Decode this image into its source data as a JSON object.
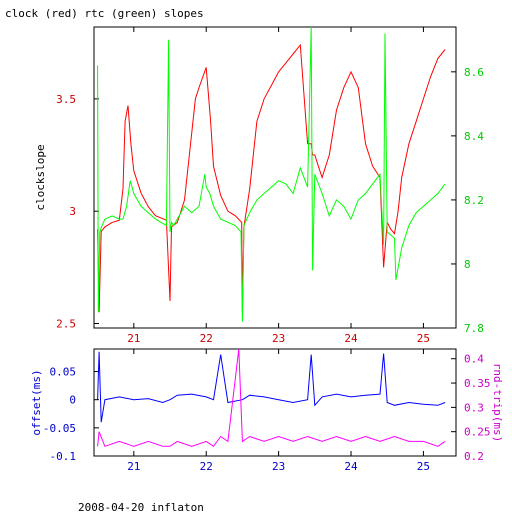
{
  "chart_data": [
    {
      "type": "line",
      "title": "clock (red) rtc (green) slopes",
      "xlabel": "",
      "ylabel_left": "clockslope",
      "ylabel_right": "",
      "xlim": [
        20.45,
        25.45
      ],
      "ylim_left": [
        2.48,
        3.82
      ],
      "ylim_right": [
        7.8,
        8.74
      ],
      "xticks": [
        21,
        22,
        23,
        24,
        25
      ],
      "yticks_left": [
        2.5,
        3,
        3.5
      ],
      "ytick_labels_left": [
        "2.5",
        "3",
        "3.5"
      ],
      "yticks_right": [
        7.8,
        8,
        8.2,
        8.4,
        8.6
      ],
      "ytick_labels_right": [
        "7.8",
        "8",
        "8.2",
        "8.4",
        "8.6"
      ],
      "colors": {
        "left_axis": "#cc0000",
        "right_axis": "#00cc00",
        "x_axis": "#cc0000",
        "frame": "#000000"
      },
      "series": [
        {
          "axis": "left",
          "color": "#ff0000",
          "x": [
            20.5,
            20.52,
            20.55,
            20.6,
            20.7,
            20.8,
            20.85,
            20.88,
            20.92,
            20.96,
            21.0,
            21.1,
            21.2,
            21.3,
            21.45,
            21.5,
            21.52,
            21.6,
            21.7,
            21.85,
            21.9,
            22.0,
            22.06,
            22.1,
            22.2,
            22.3,
            22.4,
            22.49,
            22.5,
            22.52,
            22.6,
            22.7,
            22.8,
            22.9,
            23.0,
            23.1,
            23.2,
            23.3,
            23.4,
            23.45,
            23.47,
            23.5,
            23.55,
            23.6,
            23.7,
            23.8,
            23.9,
            24.0,
            24.1,
            24.2,
            24.3,
            24.4,
            24.45,
            24.5,
            24.55,
            24.6,
            24.65,
            24.7,
            24.8,
            24.9,
            25.0,
            25.1,
            25.2,
            25.3
          ],
          "y": [
            2.92,
            2.55,
            2.91,
            2.93,
            2.95,
            2.96,
            3.1,
            3.4,
            3.47,
            3.3,
            3.18,
            3.08,
            3.02,
            2.98,
            2.96,
            2.6,
            2.93,
            2.95,
            3.05,
            3.5,
            3.55,
            3.64,
            3.4,
            3.2,
            3.07,
            3.0,
            2.98,
            2.95,
            2.55,
            2.93,
            3.1,
            3.4,
            3.5,
            3.56,
            3.62,
            3.66,
            3.7,
            3.74,
            3.3,
            3.3,
            3.25,
            3.25,
            3.2,
            3.15,
            3.25,
            3.45,
            3.55,
            3.62,
            3.55,
            3.3,
            3.2,
            3.15,
            2.75,
            2.95,
            2.92,
            2.9,
            3.0,
            3.15,
            3.3,
            3.4,
            3.5,
            3.6,
            3.68,
            3.72
          ]
        },
        {
          "axis": "right",
          "color": "#00ff00",
          "x": [
            20.5,
            20.51,
            20.53,
            20.56,
            20.6,
            20.7,
            20.8,
            20.85,
            20.9,
            20.95,
            21.0,
            21.05,
            21.1,
            21.2,
            21.3,
            21.45,
            21.48,
            21.5,
            21.52,
            21.55,
            21.6,
            21.7,
            21.8,
            21.9,
            21.98,
            22.0,
            22.05,
            22.1,
            22.2,
            22.3,
            22.4,
            22.48,
            22.5,
            22.52,
            22.6,
            22.7,
            22.8,
            22.9,
            23.0,
            23.1,
            23.2,
            23.3,
            23.4,
            23.45,
            23.47,
            23.5,
            23.6,
            23.7,
            23.8,
            23.9,
            24.0,
            24.1,
            24.2,
            24.3,
            24.4,
            24.45,
            24.47,
            24.5,
            24.6,
            24.62,
            24.7,
            24.8,
            24.9,
            25.0,
            25.1,
            25.2,
            25.3
          ],
          "y": [
            8.62,
            7.85,
            8.1,
            8.12,
            8.14,
            8.15,
            8.14,
            8.14,
            8.18,
            8.26,
            8.22,
            8.2,
            8.18,
            8.16,
            8.14,
            8.12,
            8.7,
            8.1,
            8.13,
            8.12,
            8.14,
            8.18,
            8.16,
            8.18,
            8.28,
            8.24,
            8.22,
            8.18,
            8.14,
            8.13,
            8.12,
            8.1,
            7.82,
            8.12,
            8.16,
            8.2,
            8.22,
            8.24,
            8.26,
            8.25,
            8.22,
            8.3,
            8.24,
            8.74,
            7.98,
            8.28,
            8.22,
            8.15,
            8.2,
            8.18,
            8.14,
            8.2,
            8.22,
            8.25,
            8.28,
            8.06,
            8.72,
            8.1,
            8.08,
            7.95,
            8.05,
            8.12,
            8.16,
            8.18,
            8.2,
            8.22,
            8.25
          ]
        }
      ]
    },
    {
      "type": "line",
      "title": "",
      "xlabel": "",
      "ylabel_left": "offset(ms)",
      "ylabel_right": "rnd-trip(ms)",
      "xlim": [
        20.45,
        25.45
      ],
      "ylim_left": [
        -0.1,
        0.09
      ],
      "ylim_right": [
        0.2,
        0.42
      ],
      "xticks": [
        21,
        22,
        23,
        24,
        25
      ],
      "yticks_left": [
        0.05,
        0,
        -0.05,
        -0.1
      ],
      "ytick_labels_left": [
        "0.05",
        "0",
        "-0.05",
        "-0.1"
      ],
      "yticks_right": [
        0.2,
        0.25,
        0.3,
        0.35,
        0.4
      ],
      "ytick_labels_right": [
        "0.2",
        "0.25",
        "0.3",
        "0.35",
        "0.4"
      ],
      "colors": {
        "left_axis": "#0000cc",
        "right_axis": "#cc00cc",
        "x_axis": "#0000cc",
        "frame": "#000000"
      },
      "series": [
        {
          "axis": "left",
          "color": "#0000ff",
          "x": [
            20.5,
            20.52,
            20.55,
            20.6,
            20.8,
            21.0,
            21.2,
            21.4,
            21.5,
            21.6,
            21.8,
            22.0,
            22.1,
            22.2,
            22.3,
            22.5,
            22.6,
            22.8,
            23.0,
            23.2,
            23.4,
            23.45,
            23.5,
            23.6,
            23.8,
            24.0,
            24.2,
            24.4,
            24.45,
            24.5,
            24.6,
            24.8,
            25.0,
            25.2,
            25.3
          ],
          "y": [
            0.0,
            0.085,
            -0.04,
            0.0,
            0.005,
            0.0,
            0.002,
            -0.005,
            0.0,
            0.008,
            0.01,
            0.005,
            0.0,
            0.08,
            -0.005,
            0.0,
            0.008,
            0.005,
            0.0,
            -0.005,
            0.0,
            0.08,
            -0.01,
            0.005,
            0.01,
            0.005,
            0.008,
            0.01,
            0.082,
            -0.005,
            -0.01,
            -0.005,
            -0.008,
            -0.01,
            -0.005
          ]
        },
        {
          "axis": "right",
          "color": "#ff00ff",
          "x": [
            20.5,
            20.52,
            20.6,
            20.8,
            21.0,
            21.2,
            21.4,
            21.5,
            21.6,
            21.8,
            22.0,
            22.1,
            22.2,
            22.3,
            22.45,
            22.5,
            22.6,
            22.8,
            23.0,
            23.2,
            23.4,
            23.6,
            23.8,
            24.0,
            24.2,
            24.4,
            24.6,
            24.8,
            25.0,
            25.2,
            25.3
          ],
          "y": [
            0.22,
            0.25,
            0.22,
            0.23,
            0.22,
            0.23,
            0.22,
            0.22,
            0.23,
            0.22,
            0.23,
            0.22,
            0.24,
            0.23,
            0.42,
            0.23,
            0.24,
            0.23,
            0.24,
            0.23,
            0.24,
            0.23,
            0.24,
            0.23,
            0.24,
            0.23,
            0.24,
            0.23,
            0.23,
            0.22,
            0.23
          ]
        }
      ]
    }
  ],
  "footer": "2008-04-20 inflaton"
}
